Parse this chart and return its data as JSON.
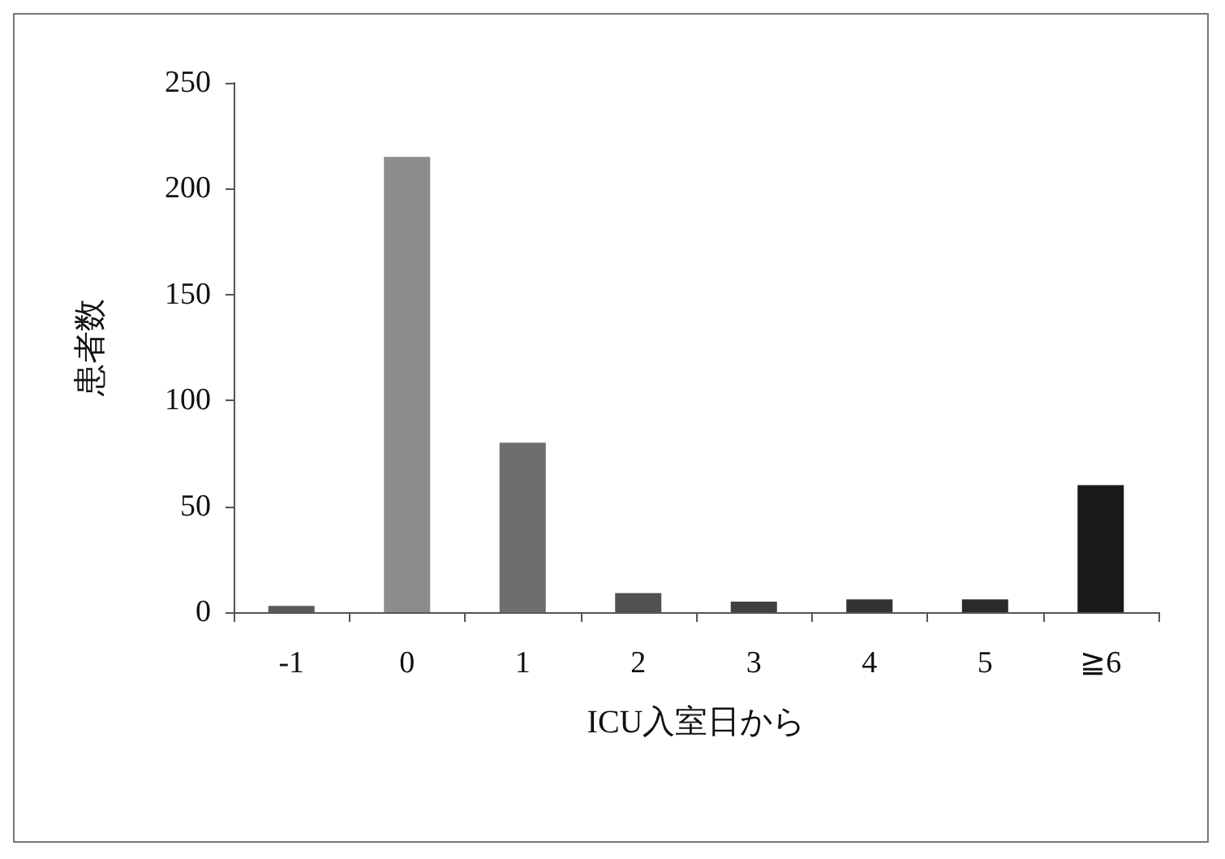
{
  "chart_data": {
    "type": "bar",
    "xlabel": "ICU入室日から",
    "ylabel": "患者数",
    "categories": [
      "-1",
      "0",
      "1",
      "2",
      "3",
      "4",
      "5",
      "≧6"
    ],
    "values": [
      3,
      215,
      80,
      9,
      5,
      6,
      6,
      60
    ],
    "colors": [
      "#5a5a5a",
      "#8c8c8c",
      "#6e6e6e",
      "#505050",
      "#404040",
      "#333333",
      "#2a2a2a",
      "#1a1a1a"
    ],
    "ylim": [
      0,
      250
    ],
    "yticks": [
      0,
      50,
      100,
      150,
      200,
      250
    ],
    "grid": false
  }
}
